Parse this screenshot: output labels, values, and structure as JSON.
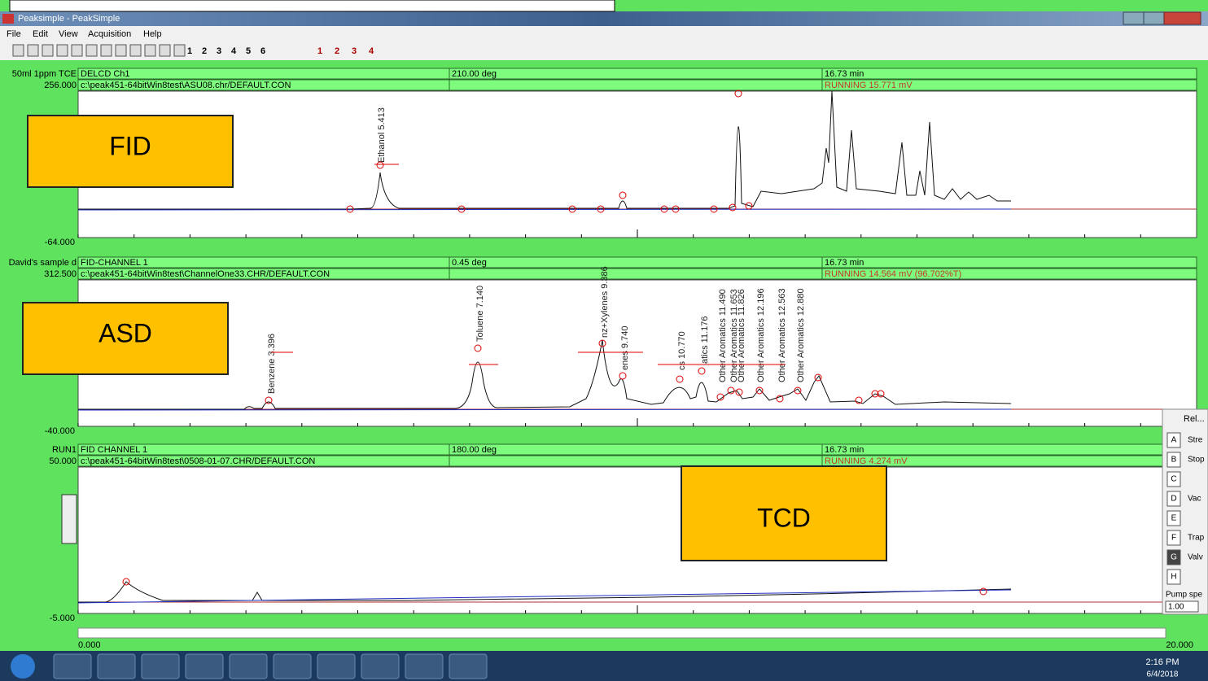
{
  "window": {
    "title": "Peaksimple - PeakSimple",
    "menu": [
      "File",
      "Edit",
      "View",
      "Acquisition",
      "Help"
    ],
    "toolbar_numbers": [
      "1",
      "2",
      "3",
      "4",
      "5",
      "6"
    ],
    "channel_buttons": [
      "1",
      "2",
      "3",
      "4"
    ]
  },
  "panels": [
    {
      "name": "50ml 1ppm TCE",
      "ymax": "256.000",
      "ymin": "-64.000",
      "detector": "DELCD Ch1",
      "file": "c:\\peak451-64bitWin8test\\ASU08.chr/DEFAULT.CON",
      "temp": "210.00 deg",
      "time": "16.73 min",
      "status": "RUNNING 15.771 mV",
      "overlay": "FID",
      "peaks": [
        "Ethanol 5.413"
      ]
    },
    {
      "name": "David's sample d",
      "ymax": "312.500",
      "ymin": "-40.000",
      "detector": "FID-CHANNEL 1",
      "file": "c:\\peak451-64bitWin8test\\ChannelOne33.CHR/DEFAULT.CON",
      "temp": "0.45 deg",
      "time": "16.73 min",
      "status": "RUNNING 14.564 mV (96.702%T)",
      "overlay": "ASD",
      "peaks": [
        "Benzene 3.396",
        "Toluene 7.140",
        "nz+Xylenes 9.386",
        "enes 9.740",
        "cs 10.770",
        "atics 11.176",
        "Other Aromatics 11.490",
        "Other Aromatics 11.653",
        "Other Aromatics 11.826",
        "Other Aromatics 12.196",
        "Other Aromatics 12.563",
        "Other Aromatics 12.880"
      ]
    },
    {
      "name": "RUN1",
      "ymax": "50.000",
      "ymin": "-5.000",
      "detector": "FID CHANNEL 1",
      "file": "c:\\peak451-64bitWin8test\\0508-01-07.CHR/DEFAULT.CON",
      "temp": "180.00 deg",
      "time": "16.73 min",
      "status": "RUNNING 4.274 mV",
      "overlay": "TCD",
      "peaks": []
    }
  ],
  "xaxis": {
    "start": "0.000",
    "end": "20.000"
  },
  "side_panel": {
    "title": "Rel...",
    "items": [
      {
        "key": "A",
        "label": "Stre"
      },
      {
        "key": "B",
        "label": "Stop"
      },
      {
        "key": "C"
      },
      {
        "key": "D",
        "label": "Vac"
      },
      {
        "key": "E"
      },
      {
        "key": "F",
        "label": "Trap"
      },
      {
        "key": "G",
        "label": "Valv"
      },
      {
        "key": "H"
      }
    ],
    "pump_label": "Pump spe",
    "pump_value": "1.00"
  },
  "taskbar": {
    "time": "2:16 PM",
    "date": "6/4/2018"
  }
}
